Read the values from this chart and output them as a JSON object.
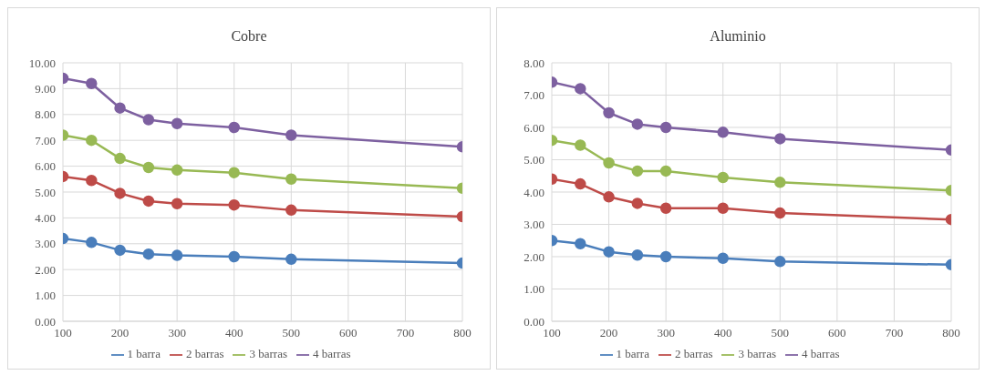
{
  "chart_data": [
    {
      "type": "line",
      "title": "Cobre",
      "x": [
        100,
        150,
        200,
        250,
        300,
        400,
        500,
        800
      ],
      "xlim": [
        100,
        800
      ],
      "xticks": [
        100,
        200,
        300,
        400,
        500,
        600,
        700,
        800
      ],
      "ylim": [
        0,
        10
      ],
      "yticks": [
        {
          "value": 0,
          "label": "0.00"
        },
        {
          "value": 1,
          "label": "1.00"
        },
        {
          "value": 2,
          "label": "2.00"
        },
        {
          "value": 3,
          "label": "3.00"
        },
        {
          "value": 4,
          "label": "4.00"
        },
        {
          "value": 5,
          "label": "5.00"
        },
        {
          "value": 6,
          "label": "6.00"
        },
        {
          "value": 7,
          "label": "7.00"
        },
        {
          "value": 8,
          "label": "8.00"
        },
        {
          "value": 9,
          "label": "9.00"
        },
        {
          "value": 10,
          "label": "10.00"
        }
      ],
      "grid": true,
      "legend": "bottom",
      "marker": "circle",
      "series": [
        {
          "name": "1 barra",
          "color": "#4a7ebb",
          "values": [
            3.2,
            3.05,
            2.75,
            2.6,
            2.55,
            2.5,
            2.4,
            2.25
          ]
        },
        {
          "name": "2 barras",
          "color": "#be4b48",
          "values": [
            5.6,
            5.45,
            4.95,
            4.65,
            4.55,
            4.5,
            4.3,
            4.05
          ]
        },
        {
          "name": "3 barras",
          "color": "#98b954",
          "values": [
            7.2,
            7.0,
            6.3,
            5.95,
            5.85,
            5.75,
            5.5,
            5.15
          ]
        },
        {
          "name": "4 barras",
          "color": "#7d60a0",
          "values": [
            9.4,
            9.2,
            8.25,
            7.8,
            7.65,
            7.5,
            7.2,
            6.75
          ]
        }
      ]
    },
    {
      "type": "line",
      "title": "Aluminio",
      "x": [
        100,
        150,
        200,
        250,
        300,
        400,
        500,
        800
      ],
      "xlim": [
        100,
        800
      ],
      "xticks": [
        100,
        200,
        300,
        400,
        500,
        600,
        700,
        800
      ],
      "ylim": [
        0,
        8
      ],
      "yticks": [
        {
          "value": 0,
          "label": "0.00"
        },
        {
          "value": 1,
          "label": "1.00"
        },
        {
          "value": 2,
          "label": "2.00"
        },
        {
          "value": 3,
          "label": "3.00"
        },
        {
          "value": 4,
          "label": "4.00"
        },
        {
          "value": 5,
          "label": "5.00"
        },
        {
          "value": 6,
          "label": "6.00"
        },
        {
          "value": 7,
          "label": "7.00"
        },
        {
          "value": 8,
          "label": "8.00"
        }
      ],
      "grid": true,
      "legend": "bottom",
      "marker": "circle",
      "series": [
        {
          "name": "1 barra",
          "color": "#4a7ebb",
          "values": [
            2.5,
            2.4,
            2.15,
            2.05,
            2.0,
            1.95,
            1.85,
            1.75
          ]
        },
        {
          "name": "2 barras",
          "color": "#be4b48",
          "values": [
            4.4,
            4.25,
            3.85,
            3.65,
            3.5,
            3.5,
            3.35,
            3.15
          ]
        },
        {
          "name": "3 barras",
          "color": "#98b954",
          "values": [
            5.6,
            5.45,
            4.9,
            4.65,
            4.65,
            4.45,
            4.3,
            4.05
          ]
        },
        {
          "name": "4 barras",
          "color": "#7d60a0",
          "values": [
            7.4,
            7.2,
            6.45,
            6.1,
            6.0,
            5.85,
            5.65,
            5.3
          ]
        }
      ]
    }
  ]
}
